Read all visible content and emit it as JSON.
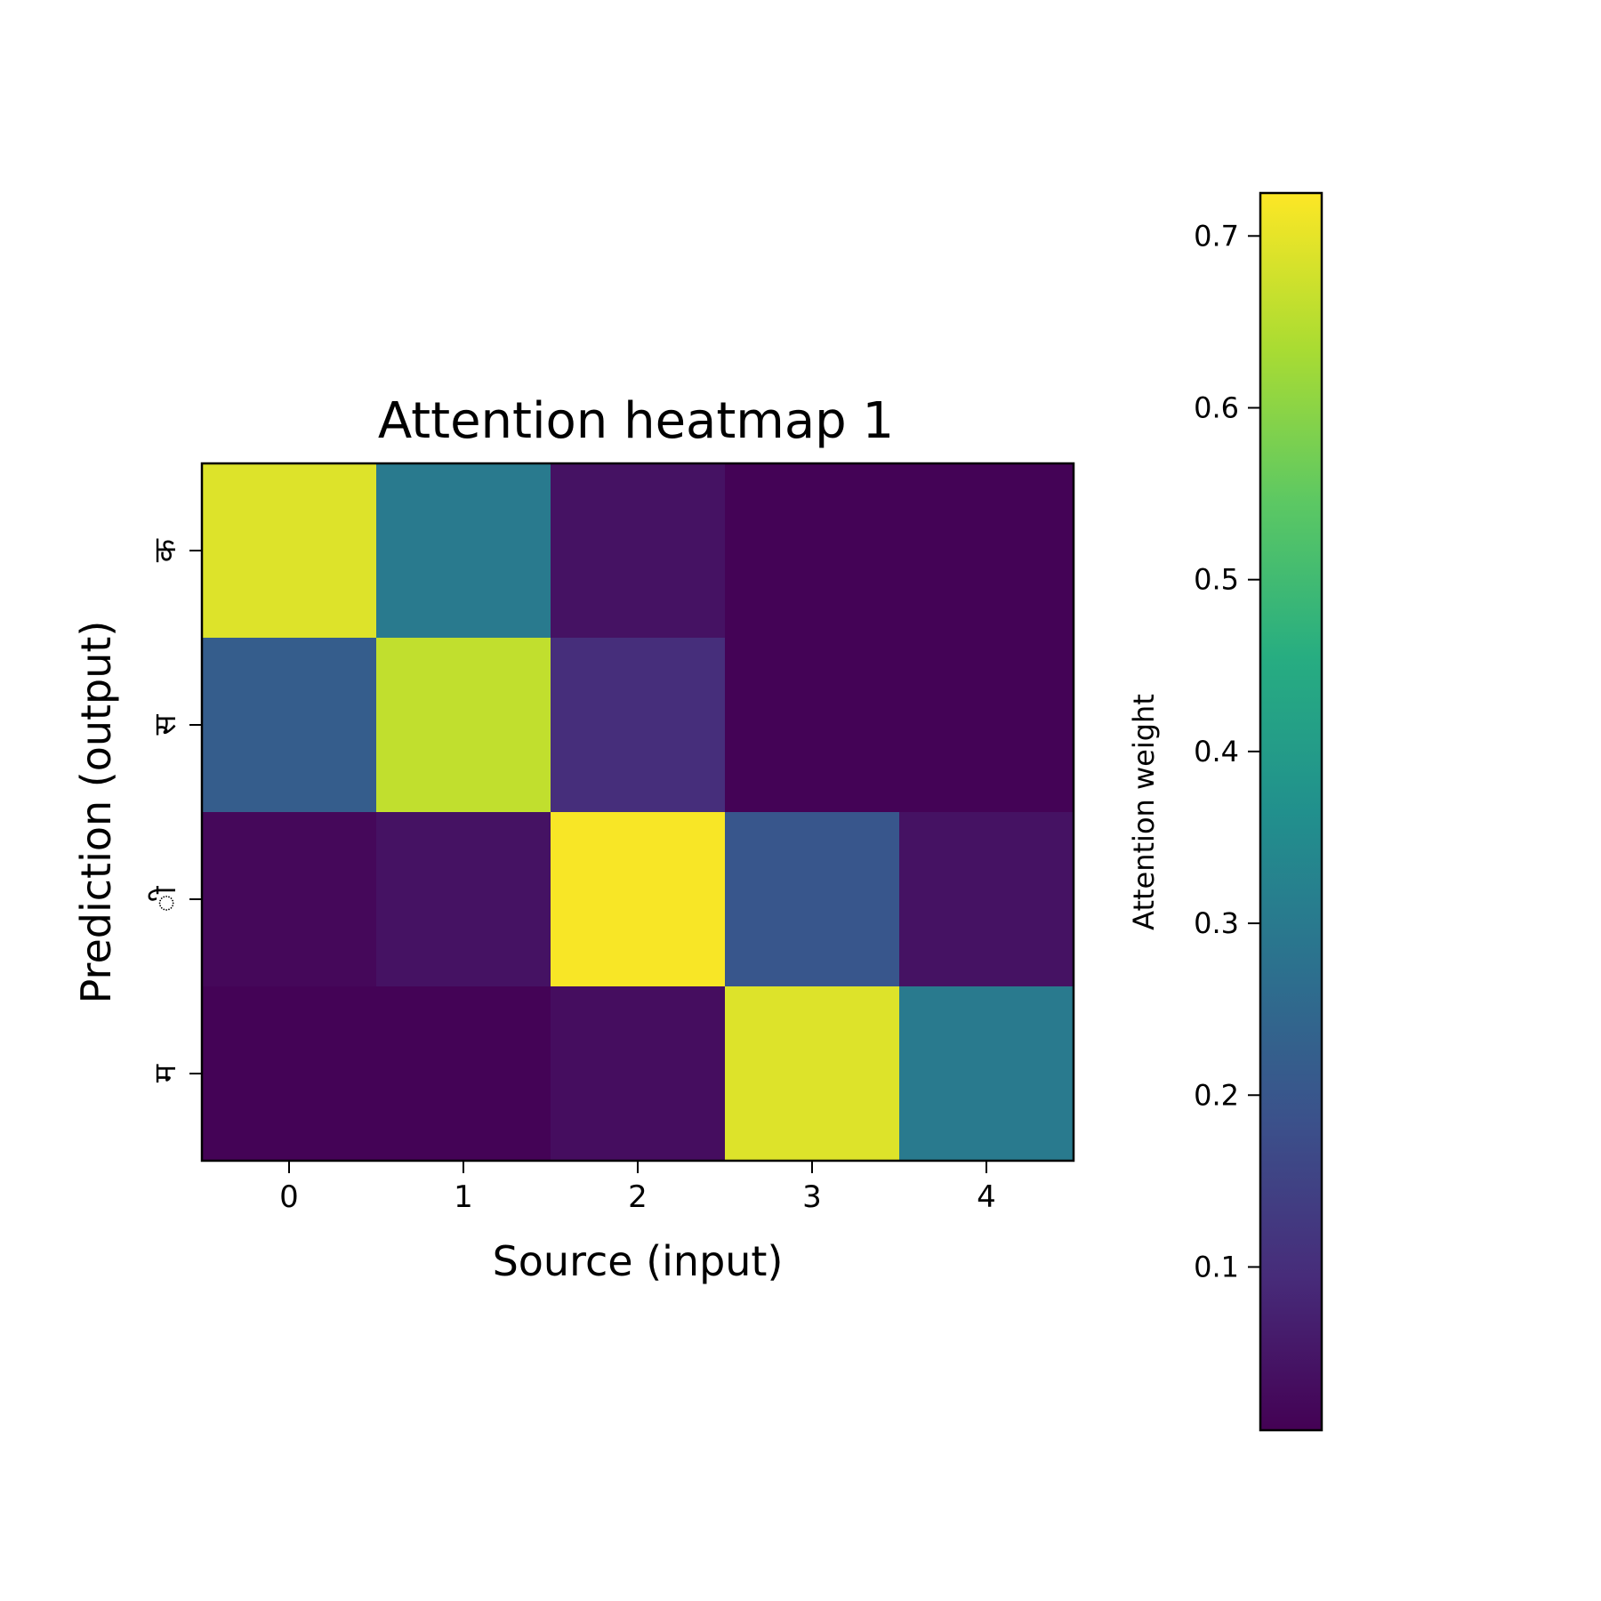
{
  "chart_data": {
    "type": "heatmap",
    "title": "Attention heatmap 1",
    "xlabel": "Source (input)",
    "ylabel": "Prediction (output)",
    "x_categories": [
      "0",
      "1",
      "2",
      "3",
      "4"
    ],
    "y_categories": [
      "क",
      "स",
      "ी",
      "म"
    ],
    "values": [
      [
        0.69,
        0.3,
        0.04,
        0.01,
        0.01
      ],
      [
        0.22,
        0.66,
        0.1,
        0.01,
        0.01
      ],
      [
        0.02,
        0.04,
        0.72,
        0.2,
        0.04
      ],
      [
        0.01,
        0.01,
        0.03,
        0.69,
        0.3
      ]
    ],
    "colormap": "viridis",
    "colorbar": {
      "label": "Attention weight",
      "range": [
        0.005,
        0.725
      ],
      "ticks": [
        0.1,
        0.2,
        0.3,
        0.4,
        0.5,
        0.6,
        0.7
      ],
      "tick_labels": [
        "0.1",
        "0.2",
        "0.3",
        "0.4",
        "0.5",
        "0.6",
        "0.7"
      ],
      "placement": "right"
    }
  }
}
